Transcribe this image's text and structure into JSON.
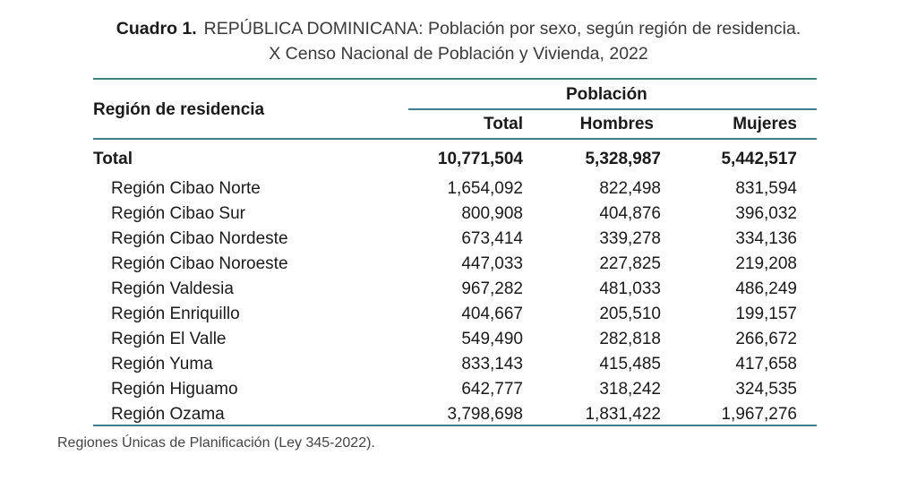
{
  "title": {
    "label": "Cuadro 1.",
    "line1": "REPÚBLICA DOMINICANA: Población por sexo, según región de residencia.",
    "line2": "X Censo Nacional de Población y Vivienda, 2022"
  },
  "headers": {
    "region": "Región de residencia",
    "group": "Población",
    "total": "Total",
    "men": "Hombres",
    "women": "Mujeres"
  },
  "total_row": {
    "label": "Total",
    "total": "10,771,504",
    "men": "5,328,987",
    "women": "5,442,517"
  },
  "rows": [
    {
      "label": "Región Cibao Norte",
      "total": "1,654,092",
      "men": "822,498",
      "women": "831,594"
    },
    {
      "label": "Región Cibao Sur",
      "total": "800,908",
      "men": "404,876",
      "women": "396,032"
    },
    {
      "label": "Región Cibao Nordeste",
      "total": "673,414",
      "men": "339,278",
      "women": "334,136"
    },
    {
      "label": "Región Cibao Noroeste",
      "total": "447,033",
      "men": "227,825",
      "women": "219,208"
    },
    {
      "label": "Región Valdesia",
      "total": "967,282",
      "men": "481,033",
      "women": "486,249"
    },
    {
      "label": "Región Enriquillo",
      "total": "404,667",
      "men": "205,510",
      "women": "199,157"
    },
    {
      "label": "Región El Valle",
      "total": "549,490",
      "men": "282,818",
      "women": "266,672"
    },
    {
      "label": "Región Yuma",
      "total": "833,143",
      "men": "415,485",
      "women": "417,658"
    },
    {
      "label": "Región Higuamo",
      "total": "642,777",
      "men": "318,242",
      "women": "324,535"
    },
    {
      "label": "Región Ozama",
      "total": "3,798,698",
      "men": "1,831,422",
      "women": "1,967,276"
    }
  ],
  "footnote": "Regiones Únicas de Planificación (Ley 345-2022).",
  "colors": {
    "rule": "#3f7f8c"
  }
}
